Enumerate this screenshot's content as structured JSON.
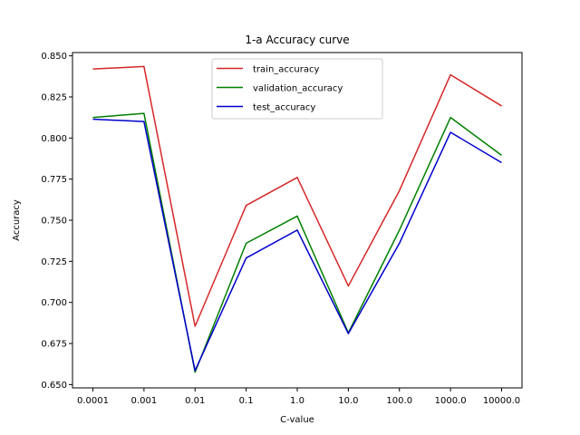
{
  "chart_data": {
    "type": "line",
    "title": "1-a Accuracy curve",
    "xlabel": "C-value",
    "ylabel": "Accuracy",
    "categories": [
      "0.0001",
      "0.001",
      "0.01",
      "0.1",
      "1.0",
      "10.0",
      "100.0",
      "1000.0",
      "10000.0"
    ],
    "ylim": [
      0.648,
      0.852
    ],
    "yticks": [
      "0.650",
      "0.675",
      "0.700",
      "0.725",
      "0.750",
      "0.775",
      "0.800",
      "0.825",
      "0.850"
    ],
    "grid": false,
    "legend_position": "upper center",
    "series": [
      {
        "name": "train_accuracy",
        "color": "#d62728",
        "values": [
          0.842,
          0.8435,
          0.6855,
          0.759,
          0.776,
          0.71,
          0.768,
          0.8385,
          0.8195
        ]
      },
      {
        "name": "validation_accuracy",
        "color": "#008000",
        "values": [
          0.8125,
          0.815,
          0.6575,
          0.736,
          0.7525,
          0.6815,
          0.744,
          0.8125,
          0.7895
        ]
      },
      {
        "name": "test_accuracy",
        "color": "#0000cc",
        "values": [
          0.8115,
          0.81,
          0.6585,
          0.727,
          0.744,
          0.681,
          0.736,
          0.8035,
          0.785
        ]
      }
    ]
  }
}
